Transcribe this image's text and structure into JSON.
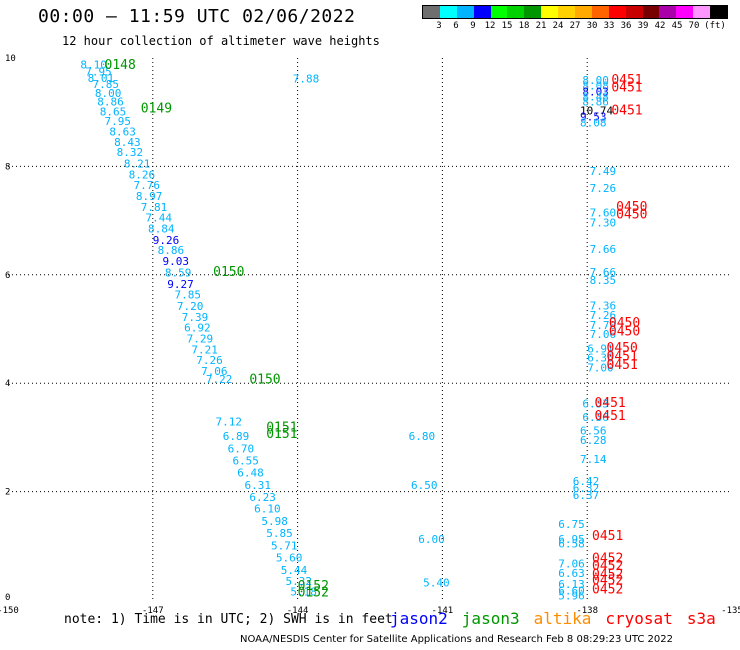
{
  "header": {
    "title": "00:00 – 11:59 UTC 02/06/2022",
    "subtitle": "12 hour collection of altimeter wave heights"
  },
  "colorbar": {
    "colors": [
      "#6e6e6e",
      "#00ffff",
      "#00b4ff",
      "#0000ff",
      "#00ff00",
      "#00d200",
      "#009600",
      "#ffff00",
      "#ffd200",
      "#ffaa00",
      "#ff6400",
      "#ff0000",
      "#c80000",
      "#780000",
      "#aa00aa",
      "#ff00ff",
      "#ff96ff",
      "#000000"
    ],
    "labels": [
      "3",
      "6",
      "9",
      "12",
      "15",
      "18",
      "21",
      "24",
      "27",
      "30",
      "33",
      "36",
      "39",
      "42",
      "45",
      "70",
      "(ft)"
    ]
  },
  "legend": {
    "note": "note: 1) Time is in UTC; 2) SWH is in feet",
    "satellites": [
      {
        "name": "jason2",
        "color": "#0000ff"
      },
      {
        "name": "jason3",
        "color": "#009600"
      },
      {
        "name": "altika",
        "color": "#ff8c00"
      },
      {
        "name": "cryosat",
        "color": "#ff0000"
      },
      {
        "name": "s3a",
        "color": "#ff0000"
      }
    ]
  },
  "credit": "NOAA/NESDIS Center for Satellite Applications and Research   Feb  8 08:29:23 UTC 2022",
  "chart_data": {
    "type": "scatter",
    "xlim": [
      -150,
      -135
    ],
    "ylim": [
      0,
      10
    ],
    "xticks": [
      "-150",
      "-147",
      "-144",
      "-141",
      "-138",
      "-135"
    ],
    "yticks": [
      "0",
      "2",
      "4",
      "6",
      "8",
      "10"
    ],
    "grid": true,
    "swh_points": [
      {
        "lon": -148.5,
        "lat": 9.81,
        "v": "8.10",
        "c": "#00b4ff"
      },
      {
        "lon": -148.4,
        "lat": 9.68,
        "v": "7.95",
        "c": "#00b4ff"
      },
      {
        "lon": -148.35,
        "lat": 9.56,
        "v": "8.01",
        "c": "#00b4ff"
      },
      {
        "lon": -148.25,
        "lat": 9.45,
        "v": "7.85",
        "c": "#00b4ff"
      },
      {
        "lon": -148.2,
        "lat": 9.28,
        "v": "8.00",
        "c": "#00b4ff"
      },
      {
        "lon": -148.15,
        "lat": 9.12,
        "v": "8.86",
        "c": "#00b4ff"
      },
      {
        "lon": -148.1,
        "lat": 8.94,
        "v": "8.65",
        "c": "#00b4ff"
      },
      {
        "lon": -148.0,
        "lat": 8.76,
        "v": "7.95",
        "c": "#00b4ff"
      },
      {
        "lon": -147.9,
        "lat": 8.57,
        "v": "8.63",
        "c": "#00b4ff"
      },
      {
        "lon": -147.8,
        "lat": 8.38,
        "v": "8.43",
        "c": "#00b4ff"
      },
      {
        "lon": -147.75,
        "lat": 8.19,
        "v": "8.32",
        "c": "#00b4ff"
      },
      {
        "lon": -147.6,
        "lat": 7.98,
        "v": "8.21",
        "c": "#00b4ff"
      },
      {
        "lon": -147.5,
        "lat": 7.78,
        "v": "8.26",
        "c": "#00b4ff"
      },
      {
        "lon": -147.4,
        "lat": 7.58,
        "v": "7.76",
        "c": "#00b4ff"
      },
      {
        "lon": -147.35,
        "lat": 7.38,
        "v": "8.97",
        "c": "#00b4ff"
      },
      {
        "lon": -147.25,
        "lat": 7.18,
        "v": "7.81",
        "c": "#00b4ff"
      },
      {
        "lon": -147.15,
        "lat": 6.98,
        "v": "7.44",
        "c": "#00b4ff"
      },
      {
        "lon": -147.1,
        "lat": 6.78,
        "v": "8.84",
        "c": "#00b4ff"
      },
      {
        "lon": -147.0,
        "lat": 6.57,
        "v": "9.26",
        "c": "#0000ff"
      },
      {
        "lon": -146.9,
        "lat": 6.38,
        "v": "8.86",
        "c": "#00b4ff"
      },
      {
        "lon": -146.8,
        "lat": 6.18,
        "v": "9.03",
        "c": "#0000ff"
      },
      {
        "lon": -146.75,
        "lat": 5.97,
        "v": "8.59",
        "c": "#00b4ff"
      },
      {
        "lon": -146.7,
        "lat": 5.76,
        "v": "9.27",
        "c": "#0000ff"
      },
      {
        "lon": -146.55,
        "lat": 5.56,
        "v": "7.85",
        "c": "#00b4ff"
      },
      {
        "lon": -146.5,
        "lat": 5.35,
        "v": "7.20",
        "c": "#00b4ff"
      },
      {
        "lon": -146.4,
        "lat": 5.15,
        "v": "7.39",
        "c": "#00b4ff"
      },
      {
        "lon": -146.35,
        "lat": 4.95,
        "v": "6.92",
        "c": "#00b4ff"
      },
      {
        "lon": -146.3,
        "lat": 4.75,
        "v": "7.29",
        "c": "#00b4ff"
      },
      {
        "lon": -146.2,
        "lat": 4.55,
        "v": "7.21",
        "c": "#00b4ff"
      },
      {
        "lon": -146.1,
        "lat": 4.35,
        "v": "7.26",
        "c": "#00b4ff"
      },
      {
        "lon": -146.0,
        "lat": 4.15,
        "v": "7.06",
        "c": "#00b4ff"
      },
      {
        "lon": -145.9,
        "lat": 4.0,
        "v": "7.22",
        "c": "#00b4ff"
      },
      {
        "lon": -145.7,
        "lat": 3.22,
        "v": "7.12",
        "c": "#00b4ff"
      },
      {
        "lon": -145.55,
        "lat": 2.95,
        "v": "6.89",
        "c": "#00b4ff"
      },
      {
        "lon": -145.45,
        "lat": 2.72,
        "v": "6.70",
        "c": "#00b4ff"
      },
      {
        "lon": -145.35,
        "lat": 2.5,
        "v": "6.55",
        "c": "#00b4ff"
      },
      {
        "lon": -145.25,
        "lat": 2.28,
        "v": "6.48",
        "c": "#00b4ff"
      },
      {
        "lon": -145.1,
        "lat": 2.05,
        "v": "6.31",
        "c": "#00b4ff"
      },
      {
        "lon": -145.0,
        "lat": 1.83,
        "v": "6.23",
        "c": "#00b4ff"
      },
      {
        "lon": -144.9,
        "lat": 1.61,
        "v": "6.10",
        "c": "#00b4ff"
      },
      {
        "lon": -144.75,
        "lat": 1.38,
        "v": "5.98",
        "c": "#00b4ff"
      },
      {
        "lon": -144.65,
        "lat": 1.16,
        "v": "5.85",
        "c": "#00b4ff"
      },
      {
        "lon": -144.55,
        "lat": 0.93,
        "v": "5.71",
        "c": "#00b4ff"
      },
      {
        "lon": -144.45,
        "lat": 0.71,
        "v": "5.60",
        "c": "#00b4ff"
      },
      {
        "lon": -144.35,
        "lat": 0.48,
        "v": "5.44",
        "c": "#00b4ff"
      },
      {
        "lon": -144.25,
        "lat": 0.28,
        "v": "5.32",
        "c": "#00b4ff"
      },
      {
        "lon": -144.15,
        "lat": 0.08,
        "v": "5.18",
        "c": "#00b4ff"
      },
      {
        "lon": -144.1,
        "lat": 9.55,
        "v": "7.88",
        "c": "#00b4ff"
      },
      {
        "lon": -141.7,
        "lat": 2.95,
        "v": "6.80",
        "c": "#00b4ff"
      },
      {
        "lon": -141.65,
        "lat": 2.05,
        "v": "6.50",
        "c": "#00b4ff"
      },
      {
        "lon": -141.5,
        "lat": 1.05,
        "v": "6.00",
        "c": "#00b4ff"
      },
      {
        "lon": -141.4,
        "lat": 0.25,
        "v": "5.40",
        "c": "#00b4ff"
      },
      {
        "lon": -138.1,
        "lat": 9.52,
        "v": "8.00",
        "c": "#00b4ff"
      },
      {
        "lon": -138.1,
        "lat": 9.42,
        "v": "8.08",
        "c": "#00b4ff"
      },
      {
        "lon": -138.1,
        "lat": 9.31,
        "v": "8.03",
        "c": "#0000ff"
      },
      {
        "lon": -138.1,
        "lat": 9.22,
        "v": "8.48",
        "c": "#00b4ff"
      },
      {
        "lon": -138.1,
        "lat": 9.12,
        "v": "8.86",
        "c": "#00b4ff"
      },
      {
        "lon": -138.15,
        "lat": 8.96,
        "v": "10.74",
        "c": "#000000"
      },
      {
        "lon": -138.15,
        "lat": 8.85,
        "v": "9.53",
        "c": "#0000ff"
      },
      {
        "lon": -138.15,
        "lat": 8.74,
        "v": "8.08",
        "c": "#00b4ff"
      },
      {
        "lon": -137.95,
        "lat": 7.84,
        "v": "7.49",
        "c": "#00b4ff"
      },
      {
        "lon": -137.95,
        "lat": 7.53,
        "v": "7.26",
        "c": "#00b4ff"
      },
      {
        "lon": -137.95,
        "lat": 7.08,
        "v": "7.60",
        "c": "#00b4ff"
      },
      {
        "lon": -137.95,
        "lat": 6.89,
        "v": "7.30",
        "c": "#00b4ff"
      },
      {
        "lon": -137.95,
        "lat": 6.4,
        "v": "7.66",
        "c": "#00b4ff"
      },
      {
        "lon": -137.95,
        "lat": 5.98,
        "v": "7.66",
        "c": "#00b4ff"
      },
      {
        "lon": -137.95,
        "lat": 5.83,
        "v": "8.35",
        "c": "#00b4ff"
      },
      {
        "lon": -137.95,
        "lat": 5.36,
        "v": "7.36",
        "c": "#00b4ff"
      },
      {
        "lon": -137.95,
        "lat": 5.18,
        "v": "7.26",
        "c": "#00b4ff"
      },
      {
        "lon": -137.95,
        "lat": 5.0,
        "v": "7.70",
        "c": "#00b4ff"
      },
      {
        "lon": -137.95,
        "lat": 4.83,
        "v": "7.06",
        "c": "#00b4ff"
      },
      {
        "lon": -138.0,
        "lat": 4.57,
        "v": "6.91",
        "c": "#00b4ff"
      },
      {
        "lon": -138.0,
        "lat": 4.4,
        "v": "6.36",
        "c": "#00b4ff"
      },
      {
        "lon": -138.0,
        "lat": 4.22,
        "v": "7.00",
        "c": "#00b4ff"
      },
      {
        "lon": -138.1,
        "lat": 3.55,
        "v": "6.33",
        "c": "#00b4ff"
      },
      {
        "lon": -138.1,
        "lat": 3.3,
        "v": "6.36",
        "c": "#00b4ff"
      },
      {
        "lon": -138.15,
        "lat": 3.05,
        "v": "6.56",
        "c": "#00b4ff"
      },
      {
        "lon": -138.15,
        "lat": 2.88,
        "v": "6.28",
        "c": "#00b4ff"
      },
      {
        "lon": -138.15,
        "lat": 2.53,
        "v": "7.14",
        "c": "#00b4ff"
      },
      {
        "lon": -138.3,
        "lat": 2.12,
        "v": "6.42",
        "c": "#00b4ff"
      },
      {
        "lon": -138.3,
        "lat": 1.99,
        "v": "6.32",
        "c": "#00b4ff"
      },
      {
        "lon": -138.3,
        "lat": 1.86,
        "v": "6.37",
        "c": "#00b4ff"
      },
      {
        "lon": -138.6,
        "lat": 1.33,
        "v": "6.75",
        "c": "#00b4ff"
      },
      {
        "lon": -138.6,
        "lat": 1.05,
        "v": "6.95",
        "c": "#00b4ff"
      },
      {
        "lon": -138.6,
        "lat": 0.97,
        "v": "6.58",
        "c": "#00b4ff"
      },
      {
        "lon": -138.6,
        "lat": 0.6,
        "v": "7.06",
        "c": "#00b4ff"
      },
      {
        "lon": -138.6,
        "lat": 0.42,
        "v": "6.63",
        "c": "#00b4ff"
      },
      {
        "lon": -138.6,
        "lat": 0.22,
        "v": "6.13",
        "c": "#00b4ff"
      },
      {
        "lon": -138.6,
        "lat": 0.1,
        "v": "6.60",
        "c": "#00b4ff"
      },
      {
        "lon": -138.6,
        "lat": 0.01,
        "v": "5.96",
        "c": "#00b4ff"
      }
    ],
    "time_labels": [
      {
        "lon": -148.0,
        "lat": 9.8,
        "t": "0148",
        "c": "#009600"
      },
      {
        "lon": -147.25,
        "lat": 8.99,
        "t": "0149",
        "c": "#009600"
      },
      {
        "lon": -145.75,
        "lat": 5.98,
        "t": "0150",
        "c": "#009600"
      },
      {
        "lon": -145.0,
        "lat": 3.99,
        "t": "0150",
        "c": "#009600"
      },
      {
        "lon": -144.65,
        "lat": 3.11,
        "t": "0151",
        "c": "#009600"
      },
      {
        "lon": -144.65,
        "lat": 2.99,
        "t": "0151",
        "c": "#009600"
      },
      {
        "lon": -144.0,
        "lat": 0.18,
        "t": "0152",
        "c": "#009600"
      },
      {
        "lon": -144.0,
        "lat": 0.06,
        "t": "0152",
        "c": "#009600"
      },
      {
        "lon": -137.5,
        "lat": 9.52,
        "t": "0451",
        "c": "#ff0000"
      },
      {
        "lon": -137.5,
        "lat": 9.38,
        "t": "0451",
        "c": "#ff0000"
      },
      {
        "lon": -137.5,
        "lat": 8.96,
        "t": "0451",
        "c": "#ff0000"
      },
      {
        "lon": -137.4,
        "lat": 7.18,
        "t": "0450",
        "c": "#ff0000"
      },
      {
        "lon": -137.4,
        "lat": 7.04,
        "t": "0450",
        "c": "#ff0000"
      },
      {
        "lon": -137.55,
        "lat": 5.04,
        "t": "0450",
        "c": "#ff0000"
      },
      {
        "lon": -137.55,
        "lat": 4.88,
        "t": "0450",
        "c": "#ff0000"
      },
      {
        "lon": -137.6,
        "lat": 4.58,
        "t": "0450",
        "c": "#ff0000"
      },
      {
        "lon": -137.6,
        "lat": 4.42,
        "t": "0451",
        "c": "#ff0000"
      },
      {
        "lon": -137.6,
        "lat": 4.26,
        "t": "0451",
        "c": "#ff0000"
      },
      {
        "lon": -137.85,
        "lat": 3.56,
        "t": "0451",
        "c": "#ff0000"
      },
      {
        "lon": -137.85,
        "lat": 3.32,
        "t": "0451",
        "c": "#ff0000"
      },
      {
        "lon": -137.9,
        "lat": 1.11,
        "t": "0451",
        "c": "#ff0000"
      },
      {
        "lon": -137.9,
        "lat": 0.69,
        "t": "0452",
        "c": "#ff0000"
      },
      {
        "lon": -137.9,
        "lat": 0.55,
        "t": "0452",
        "c": "#ff0000"
      },
      {
        "lon": -137.9,
        "lat": 0.4,
        "t": "0452",
        "c": "#ff0000"
      },
      {
        "lon": -137.9,
        "lat": 0.29,
        "t": "0452",
        "c": "#ff0000"
      },
      {
        "lon": -137.9,
        "lat": 0.12,
        "t": "0452",
        "c": "#ff0000"
      }
    ]
  }
}
